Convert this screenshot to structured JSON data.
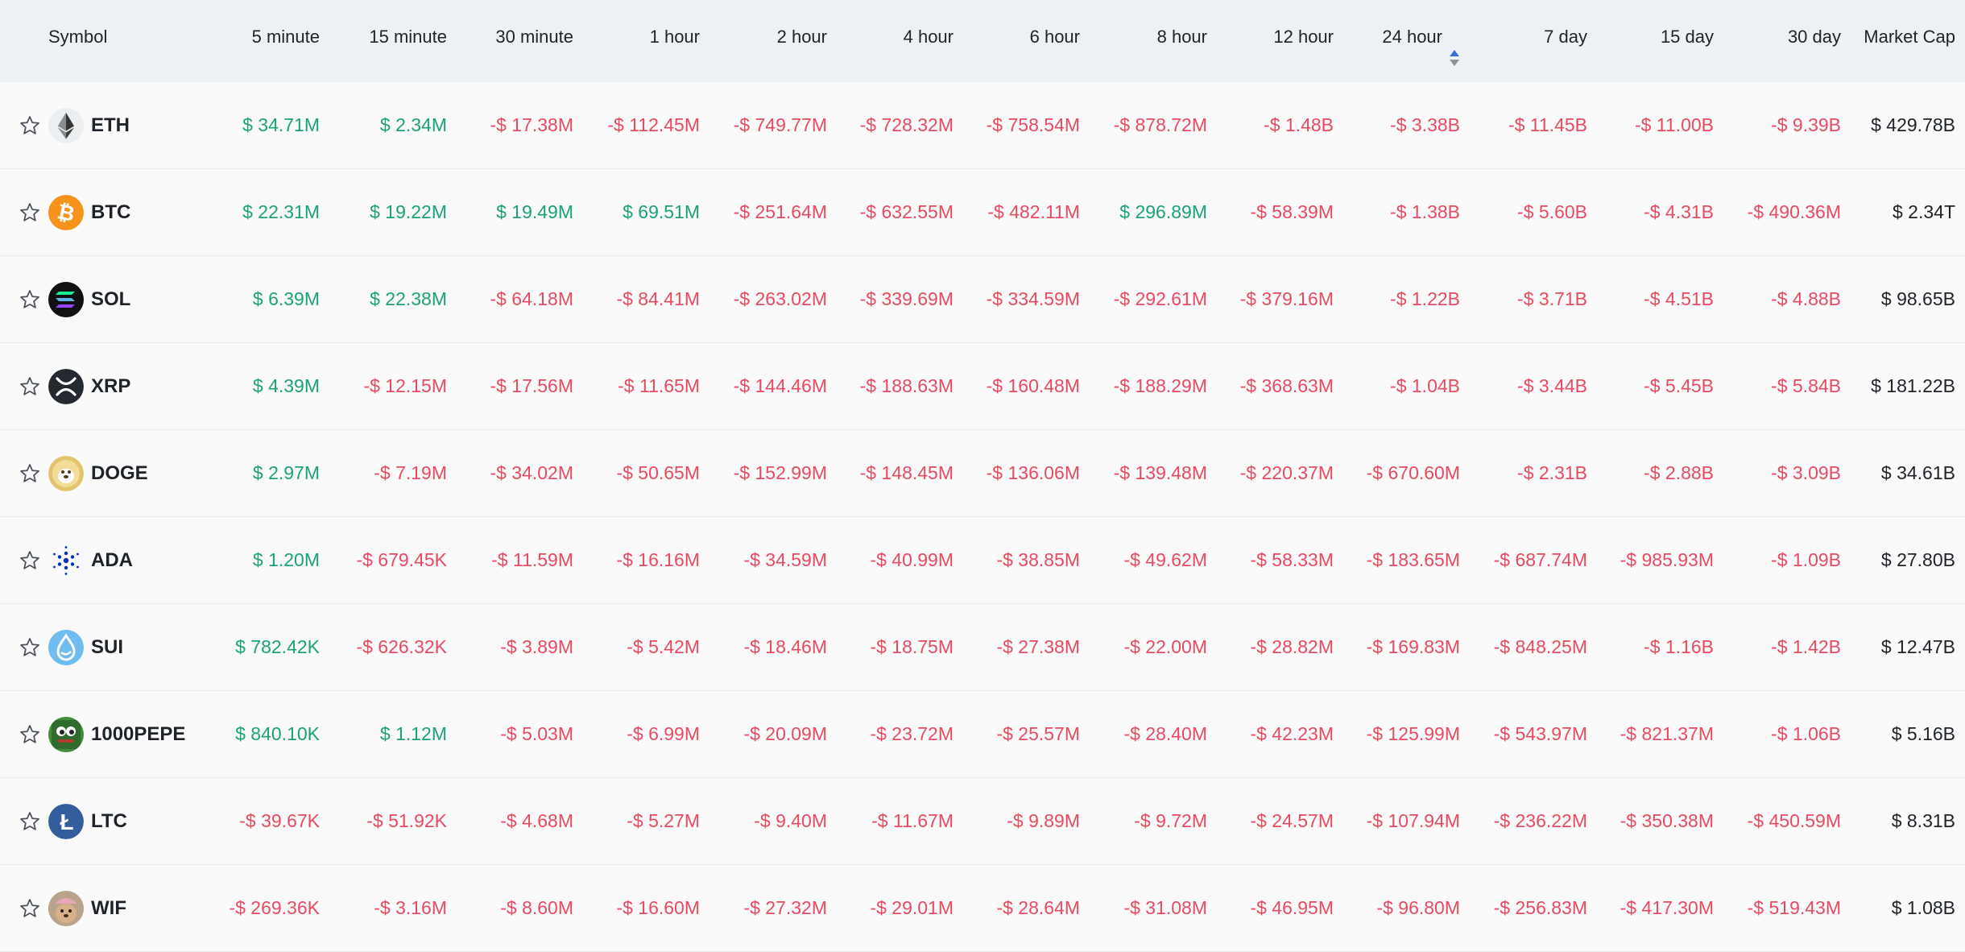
{
  "header": {
    "symbol": "Symbol",
    "columns": [
      "5 minute",
      "15 minute",
      "30 minute",
      "1 hour",
      "2 hour",
      "4 hour",
      "6 hour",
      "8 hour",
      "12 hour",
      "24 hour",
      "7 day",
      "15 day",
      "30 day",
      "Market Cap"
    ],
    "sorted_column": "24 hour"
  },
  "colors": {
    "positive": "#1ba27a",
    "negative": "#e84a5f",
    "sort_active": "#3a6fd8",
    "sort_inactive": "#8a929c"
  },
  "rows": [
    {
      "symbol": "ETH",
      "icon": "eth-icon",
      "values": [
        "$ 34.71M",
        "$ 2.34M",
        "-$ 17.38M",
        "-$ 112.45M",
        "-$ 749.77M",
        "-$ 728.32M",
        "-$ 758.54M",
        "-$ 878.72M",
        "-$ 1.48B",
        "-$ 3.38B",
        "-$ 11.45B",
        "-$ 11.00B",
        "-$ 9.39B"
      ],
      "market_cap": "$ 429.78B"
    },
    {
      "symbol": "BTC",
      "icon": "btc-icon",
      "values": [
        "$ 22.31M",
        "$ 19.22M",
        "$ 19.49M",
        "$ 69.51M",
        "-$ 251.64M",
        "-$ 632.55M",
        "-$ 482.11M",
        "$ 296.89M",
        "-$ 58.39M",
        "-$ 1.38B",
        "-$ 5.60B",
        "-$ 4.31B",
        "-$ 490.36M"
      ],
      "market_cap": "$ 2.34T"
    },
    {
      "symbol": "SOL",
      "icon": "sol-icon",
      "values": [
        "$ 6.39M",
        "$ 22.38M",
        "-$ 64.18M",
        "-$ 84.41M",
        "-$ 263.02M",
        "-$ 339.69M",
        "-$ 334.59M",
        "-$ 292.61M",
        "-$ 379.16M",
        "-$ 1.22B",
        "-$ 3.71B",
        "-$ 4.51B",
        "-$ 4.88B"
      ],
      "market_cap": "$ 98.65B"
    },
    {
      "symbol": "XRP",
      "icon": "xrp-icon",
      "values": [
        "$ 4.39M",
        "-$ 12.15M",
        "-$ 17.56M",
        "-$ 11.65M",
        "-$ 144.46M",
        "-$ 188.63M",
        "-$ 160.48M",
        "-$ 188.29M",
        "-$ 368.63M",
        "-$ 1.04B",
        "-$ 3.44B",
        "-$ 5.45B",
        "-$ 5.84B"
      ],
      "market_cap": "$ 181.22B"
    },
    {
      "symbol": "DOGE",
      "icon": "doge-icon",
      "values": [
        "$ 2.97M",
        "-$ 7.19M",
        "-$ 34.02M",
        "-$ 50.65M",
        "-$ 152.99M",
        "-$ 148.45M",
        "-$ 136.06M",
        "-$ 139.48M",
        "-$ 220.37M",
        "-$ 670.60M",
        "-$ 2.31B",
        "-$ 2.88B",
        "-$ 3.09B"
      ],
      "market_cap": "$ 34.61B"
    },
    {
      "symbol": "ADA",
      "icon": "ada-icon",
      "values": [
        "$ 1.20M",
        "-$ 679.45K",
        "-$ 11.59M",
        "-$ 16.16M",
        "-$ 34.59M",
        "-$ 40.99M",
        "-$ 38.85M",
        "-$ 49.62M",
        "-$ 58.33M",
        "-$ 183.65M",
        "-$ 687.74M",
        "-$ 985.93M",
        "-$ 1.09B"
      ],
      "market_cap": "$ 27.80B"
    },
    {
      "symbol": "SUI",
      "icon": "sui-icon",
      "values": [
        "$ 782.42K",
        "-$ 626.32K",
        "-$ 3.89M",
        "-$ 5.42M",
        "-$ 18.46M",
        "-$ 18.75M",
        "-$ 27.38M",
        "-$ 22.00M",
        "-$ 28.82M",
        "-$ 169.83M",
        "-$ 848.25M",
        "-$ 1.16B",
        "-$ 1.42B"
      ],
      "market_cap": "$ 12.47B"
    },
    {
      "symbol": "1000PEPE",
      "icon": "pepe-icon",
      "values": [
        "$ 840.10K",
        "$ 1.12M",
        "-$ 5.03M",
        "-$ 6.99M",
        "-$ 20.09M",
        "-$ 23.72M",
        "-$ 25.57M",
        "-$ 28.40M",
        "-$ 42.23M",
        "-$ 125.99M",
        "-$ 543.97M",
        "-$ 821.37M",
        "-$ 1.06B"
      ],
      "market_cap": "$ 5.16B"
    },
    {
      "symbol": "LTC",
      "icon": "ltc-icon",
      "values": [
        "-$ 39.67K",
        "-$ 51.92K",
        "-$ 4.68M",
        "-$ 5.27M",
        "-$ 9.40M",
        "-$ 11.67M",
        "-$ 9.89M",
        "-$ 9.72M",
        "-$ 24.57M",
        "-$ 107.94M",
        "-$ 236.22M",
        "-$ 350.38M",
        "-$ 450.59M"
      ],
      "market_cap": "$ 8.31B"
    },
    {
      "symbol": "WIF",
      "icon": "wif-icon",
      "values": [
        "-$ 269.36K",
        "-$ 3.16M",
        "-$ 8.60M",
        "-$ 16.60M",
        "-$ 27.32M",
        "-$ 29.01M",
        "-$ 28.64M",
        "-$ 31.08M",
        "-$ 46.95M",
        "-$ 96.80M",
        "-$ 256.83M",
        "-$ 417.30M",
        "-$ 519.43M"
      ],
      "market_cap": "$ 1.08B"
    }
  ]
}
